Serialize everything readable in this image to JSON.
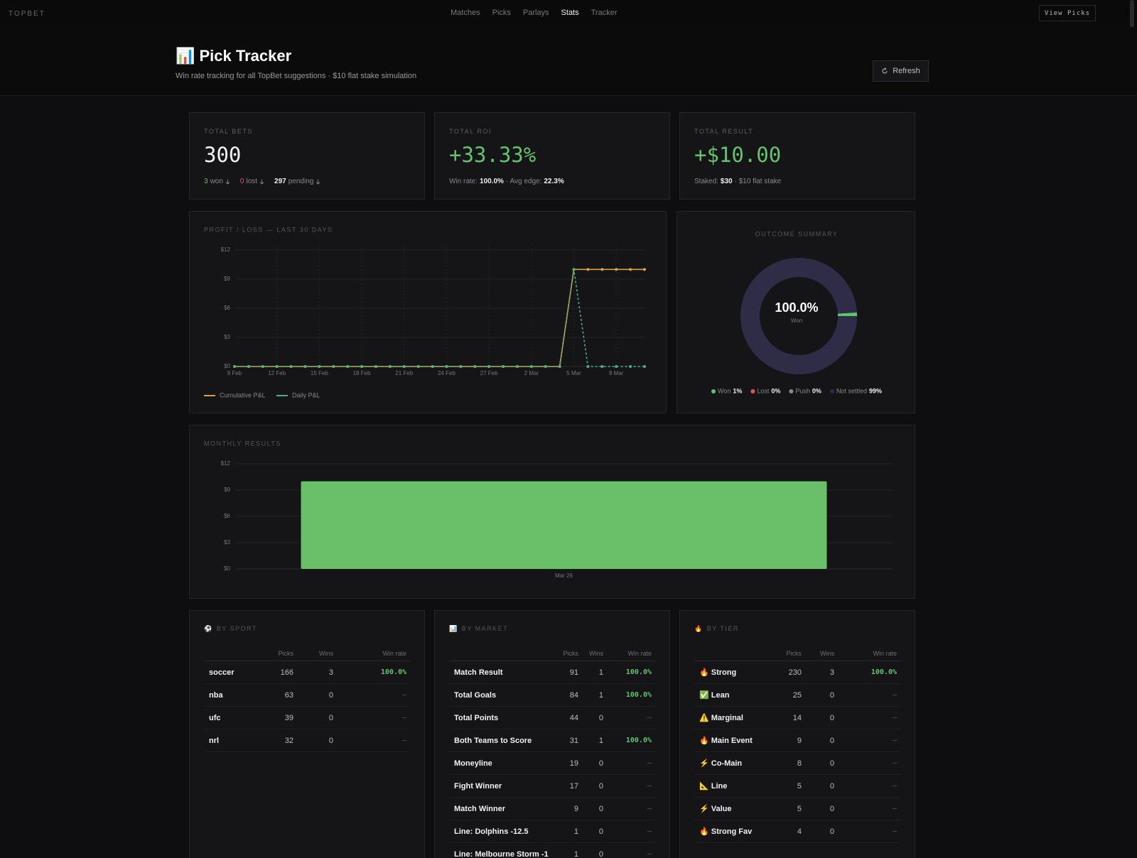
{
  "nav": {
    "brand": "TOPBET",
    "links": [
      "Matches",
      "Picks",
      "Parlays",
      "Stats",
      "Tracker"
    ],
    "button": "View Picks"
  },
  "header": {
    "title": "📊 Pick Tracker",
    "subtitle": "Win rate tracking for all TopBet suggestions · $10 flat stake simulation",
    "refresh": "Refresh"
  },
  "stats": [
    {
      "label": "TOTAL BETS",
      "value": 300,
      "breakdown": [
        {
          "count": 3,
          "label": "won"
        },
        {
          "count": 0,
          "label": "lost"
        },
        {
          "count": 297,
          "label": "pending"
        }
      ]
    },
    {
      "label": "TOTAL ROI",
      "value": "+33.33%",
      "details": [
        {
          "label": "Win rate:",
          "value": "100.0%"
        },
        {
          "label": "· Avg edge:",
          "value": "22.3%"
        }
      ]
    },
    {
      "label": "TOTAL RESULT",
      "value": "+$10.00",
      "details": [
        {
          "label": "Staked:",
          "value": "$30"
        },
        {
          "label": "· $10 flat stake"
        }
      ]
    }
  ],
  "chart_data": [
    {
      "type": "line",
      "title": "PROFIT / LOSS — LAST 30 DAYS",
      "categories": [
        "9 Feb",
        null,
        null,
        "12 Feb",
        null,
        null,
        "15 Feb",
        null,
        null,
        "18 Feb",
        null,
        null,
        "21 Feb",
        null,
        null,
        "24 Feb",
        null,
        null,
        "27 Feb",
        null,
        null,
        "2 Mar",
        null,
        null,
        "5 Mar",
        null,
        null,
        "8 Mar",
        null,
        null
      ],
      "series": [
        {
          "name": "Cumulative P&L",
          "color": "#d9a441",
          "line_style": "solid",
          "values": [
            0,
            0,
            0,
            0,
            0,
            0,
            0,
            0,
            0,
            0,
            0,
            0,
            0,
            0,
            0,
            0,
            0,
            0,
            0,
            0,
            0,
            0,
            0,
            0,
            10,
            10,
            10,
            10,
            10,
            10
          ]
        },
        {
          "name": "Daily P&L",
          "color": "#4fae83",
          "line_style": "dashed",
          "values": [
            0,
            0,
            0,
            0,
            0,
            0,
            0,
            0,
            0,
            0,
            0,
            0,
            0,
            0,
            0,
            0,
            0,
            0,
            0,
            0,
            0,
            0,
            0,
            0,
            10,
            0,
            0,
            0,
            0,
            0
          ]
        }
      ],
      "ylim": [
        0,
        12
      ],
      "yticks": [
        {
          "value": 0,
          "label": "$0"
        },
        {
          "value": 3,
          "label": "$3"
        },
        {
          "value": 6,
          "label": "$6"
        },
        {
          "value": 9,
          "label": "$9"
        },
        {
          "value": 12,
          "label": "$12"
        }
      ],
      "grid": true,
      "legend": "bottom-left"
    },
    {
      "type": "pie",
      "title": "OUTCOME SUMMARY",
      "donut": true,
      "center_value": "100.0%",
      "center_label": "Won",
      "categories": [
        "Won",
        "Lost",
        "Push",
        "Not settled"
      ],
      "values": [
        1,
        0,
        0,
        99
      ],
      "value_labels": [
        "1%",
        "0%",
        "0%",
        "99%"
      ],
      "colors": [
        "#5cc46a",
        "#e0574f",
        "#8a8a8a",
        "#2f2c48"
      ],
      "legend": "bottom"
    },
    {
      "type": "bar",
      "title": "MONTHLY RESULTS",
      "categories": [
        "Mar 26"
      ],
      "values": [
        10
      ],
      "color": "#6abf69",
      "ylim": [
        0,
        12
      ],
      "yticks": [
        {
          "value": 0,
          "label": "$0"
        },
        {
          "value": 3,
          "label": "$3"
        },
        {
          "value": 6,
          "label": "$6"
        },
        {
          "value": 9,
          "label": "$9"
        },
        {
          "value": 12,
          "label": "$12"
        }
      ],
      "grid": true
    }
  ],
  "tables": [
    {
      "icon": "⚽",
      "title": "BY SPORT",
      "columns": [
        "Picks",
        "Wins",
        "Win rate"
      ],
      "rows": [
        [
          "soccer",
          166,
          3,
          "100.0%"
        ],
        [
          "nba",
          63,
          0,
          "—"
        ],
        [
          "ufc",
          39,
          0,
          "—"
        ],
        [
          "nrl",
          32,
          0,
          "—"
        ]
      ]
    },
    {
      "icon": "📊",
      "title": "BY MARKET",
      "columns": [
        "Picks",
        "Wins",
        "Win rate"
      ],
      "rows": [
        [
          "Match Result",
          91,
          1,
          "100.0%"
        ],
        [
          "Total Goals",
          84,
          1,
          "100.0%"
        ],
        [
          "Total Points",
          44,
          0,
          "—"
        ],
        [
          "Both Teams to Score",
          31,
          1,
          "100.0%"
        ],
        [
          "Moneyline",
          19,
          0,
          "—"
        ],
        [
          "Fight Winner",
          17,
          0,
          "—"
        ],
        [
          "Match Winner",
          9,
          0,
          "—"
        ],
        [
          "Line: Dolphins -12.5",
          1,
          0,
          "—"
        ],
        [
          "Line: Melbourne Storm -1",
          1,
          0,
          "—"
        ]
      ]
    },
    {
      "icon": "🔥",
      "title": "BY TIER",
      "columns": [
        "Picks",
        "Wins",
        "Win rate"
      ],
      "rows": [
        [
          "🔥 Strong",
          230,
          3,
          "100.0%"
        ],
        [
          "✅ Lean",
          25,
          0,
          "—"
        ],
        [
          "⚠️ Marginal",
          14,
          0,
          "—"
        ],
        [
          "🔥 Main Event",
          9,
          0,
          "—"
        ],
        [
          "⚡ Co-Main",
          8,
          0,
          "—"
        ],
        [
          "📐 Line",
          5,
          0,
          "—"
        ],
        [
          "⚡ Value",
          5,
          0,
          "—"
        ],
        [
          "🔥 Strong Fav",
          4,
          0,
          "—"
        ]
      ]
    }
  ]
}
